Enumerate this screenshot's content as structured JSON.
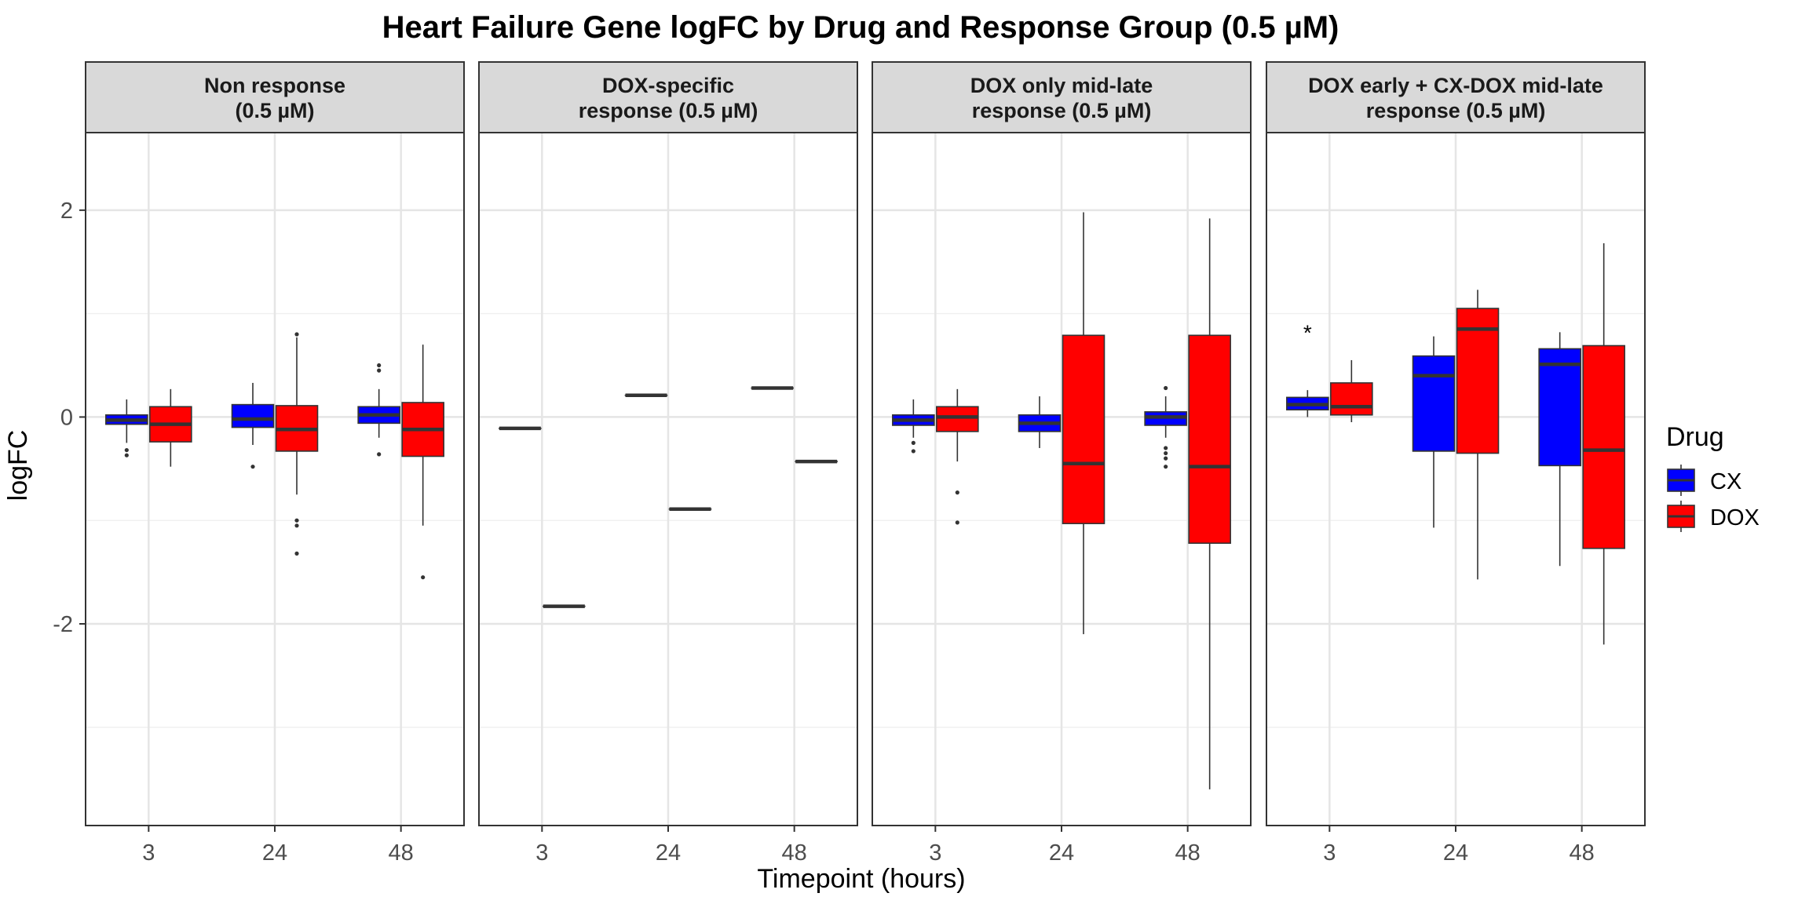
{
  "chart_data": {
    "type": "box",
    "title": "Heart Failure Gene logFC by Drug and Response Group (0.5 µM)",
    "xlabel": "Timepoint (hours)",
    "ylabel": "logFC",
    "ylim": [
      -3.95,
      2.75
    ],
    "y_ticks": [
      2,
      0,
      -2
    ],
    "y_tick_labels": [
      "2",
      "0",
      "-2"
    ],
    "categories": [
      "3",
      "24",
      "48"
    ],
    "grid": true,
    "legend": {
      "title": "Drug",
      "position": "right",
      "entries": [
        {
          "name": "CX",
          "color": "#0000ff"
        },
        {
          "name": "DOX",
          "color": "#ff0000"
        }
      ]
    },
    "panels": [
      {
        "strip": [
          "Non response",
          "(0.5 µM)"
        ],
        "boxes": [
          {
            "timepoint": "3",
            "drug": "CX",
            "min": -0.25,
            "q1": -0.07,
            "median": -0.03,
            "q3": 0.02,
            "max": 0.17,
            "outliers": [
              -0.32,
              -0.37
            ]
          },
          {
            "timepoint": "3",
            "drug": "DOX",
            "min": -0.48,
            "q1": -0.24,
            "median": -0.07,
            "q3": 0.1,
            "max": 0.27,
            "outliers": []
          },
          {
            "timepoint": "24",
            "drug": "CX",
            "min": -0.27,
            "q1": -0.1,
            "median": -0.02,
            "q3": 0.12,
            "max": 0.33,
            "outliers": [
              -0.48
            ]
          },
          {
            "timepoint": "24",
            "drug": "DOX",
            "min": -0.75,
            "q1": -0.33,
            "median": -0.12,
            "q3": 0.11,
            "max": 0.77,
            "outliers": [
              -1.0,
              -1.05,
              -1.32,
              0.8
            ]
          },
          {
            "timepoint": "48",
            "drug": "CX",
            "min": -0.2,
            "q1": -0.06,
            "median": 0.02,
            "q3": 0.1,
            "max": 0.27,
            "outliers": [
              -0.36,
              0.45,
              0.5
            ]
          },
          {
            "timepoint": "48",
            "drug": "DOX",
            "min": -1.05,
            "q1": -0.38,
            "median": -0.12,
            "q3": 0.14,
            "max": 0.7,
            "outliers": [
              -1.55
            ]
          }
        ],
        "annotations": []
      },
      {
        "strip": [
          "DOX-specific",
          "response (0.5 µM)"
        ],
        "boxes": [
          {
            "timepoint": "3",
            "drug": "CX",
            "min": -0.11,
            "q1": -0.11,
            "median": -0.11,
            "q3": -0.11,
            "max": -0.11,
            "outliers": []
          },
          {
            "timepoint": "3",
            "drug": "DOX",
            "min": -1.83,
            "q1": -1.83,
            "median": -1.83,
            "q3": -1.83,
            "max": -1.83,
            "outliers": []
          },
          {
            "timepoint": "24",
            "drug": "CX",
            "min": 0.21,
            "q1": 0.21,
            "median": 0.21,
            "q3": 0.21,
            "max": 0.21,
            "outliers": []
          },
          {
            "timepoint": "24",
            "drug": "DOX",
            "min": -0.89,
            "q1": -0.89,
            "median": -0.89,
            "q3": -0.89,
            "max": -0.89,
            "outliers": []
          },
          {
            "timepoint": "48",
            "drug": "CX",
            "min": 0.28,
            "q1": 0.28,
            "median": 0.28,
            "q3": 0.28,
            "max": 0.28,
            "outliers": []
          },
          {
            "timepoint": "48",
            "drug": "DOX",
            "min": -0.43,
            "q1": -0.43,
            "median": -0.43,
            "q3": -0.43,
            "max": -0.43,
            "outliers": []
          }
        ],
        "annotations": []
      },
      {
        "strip": [
          "DOX only mid-late",
          "response (0.5 µM)"
        ],
        "boxes": [
          {
            "timepoint": "3",
            "drug": "CX",
            "min": -0.2,
            "q1": -0.08,
            "median": -0.03,
            "q3": 0.02,
            "max": 0.17,
            "outliers": [
              -0.25,
              -0.33
            ]
          },
          {
            "timepoint": "3",
            "drug": "DOX",
            "min": -0.43,
            "q1": -0.14,
            "median": 0.0,
            "q3": 0.1,
            "max": 0.27,
            "outliers": [
              -0.73,
              -1.02
            ]
          },
          {
            "timepoint": "24",
            "drug": "CX",
            "min": -0.3,
            "q1": -0.14,
            "median": -0.06,
            "q3": 0.02,
            "max": 0.2,
            "outliers": []
          },
          {
            "timepoint": "24",
            "drug": "DOX",
            "min": -2.1,
            "q1": -1.03,
            "median": -0.45,
            "q3": 0.79,
            "max": 1.98,
            "outliers": []
          },
          {
            "timepoint": "48",
            "drug": "CX",
            "min": -0.2,
            "q1": -0.08,
            "median": 0.0,
            "q3": 0.05,
            "max": 0.2,
            "outliers": [
              -0.3,
              -0.35,
              -0.4,
              -0.48,
              0.28
            ]
          },
          {
            "timepoint": "48",
            "drug": "DOX",
            "min": -3.6,
            "q1": -1.22,
            "median": -0.48,
            "q3": 0.79,
            "max": 1.92,
            "outliers": []
          }
        ],
        "annotations": []
      },
      {
        "strip": [
          "DOX early + CX-DOX mid-late",
          "response (0.5 µM)"
        ],
        "boxes": [
          {
            "timepoint": "3",
            "drug": "CX",
            "min": 0.0,
            "q1": 0.07,
            "median": 0.12,
            "q3": 0.19,
            "max": 0.26,
            "outliers": []
          },
          {
            "timepoint": "3",
            "drug": "DOX",
            "min": -0.05,
            "q1": 0.02,
            "median": 0.1,
            "q3": 0.33,
            "max": 0.55,
            "outliers": []
          },
          {
            "timepoint": "24",
            "drug": "CX",
            "min": -1.07,
            "q1": -0.33,
            "median": 0.4,
            "q3": 0.59,
            "max": 0.78,
            "outliers": []
          },
          {
            "timepoint": "24",
            "drug": "DOX",
            "min": -1.57,
            "q1": -0.35,
            "median": 0.85,
            "q3": 1.05,
            "max": 1.23,
            "outliers": []
          },
          {
            "timepoint": "48",
            "drug": "CX",
            "min": -1.44,
            "q1": -0.47,
            "median": 0.51,
            "q3": 0.66,
            "max": 0.82,
            "outliers": []
          },
          {
            "timepoint": "48",
            "drug": "DOX",
            "min": -2.2,
            "q1": -1.27,
            "median": -0.32,
            "q3": 0.69,
            "max": 1.68,
            "outliers": []
          }
        ],
        "annotations": [
          {
            "timepoint": "3",
            "drug": "CX",
            "y": 0.85,
            "text": "*"
          }
        ]
      }
    ]
  }
}
